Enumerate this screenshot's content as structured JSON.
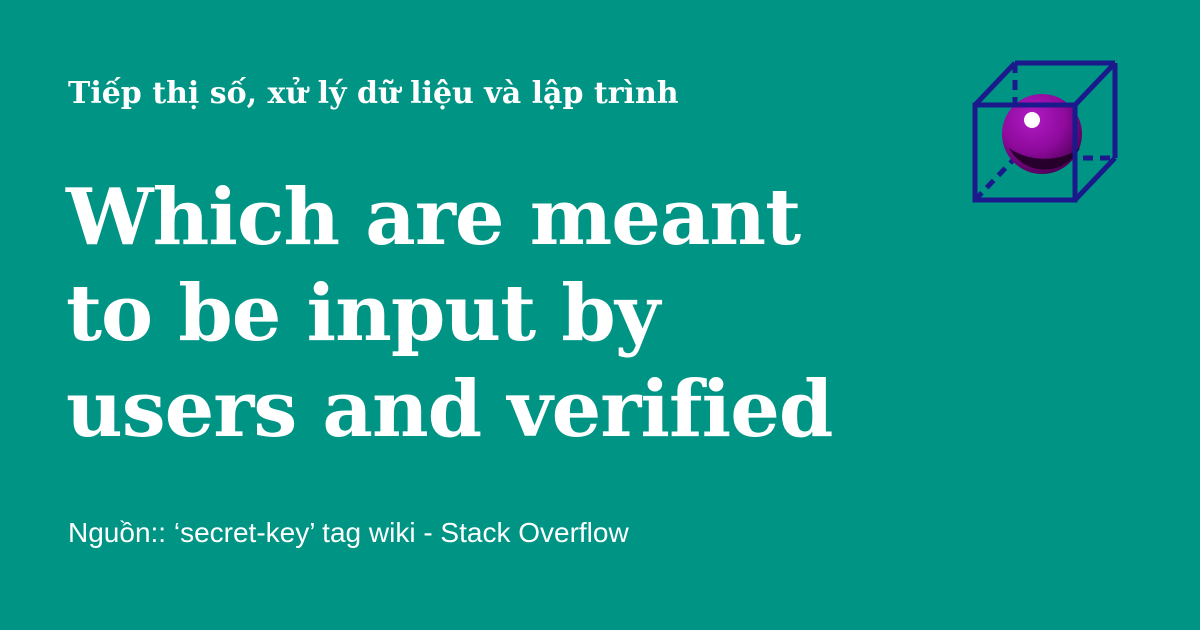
{
  "kicker": "Tiếp thị số, xử lý dữ liệu và lập trình",
  "headline": {
    "line1": "Which are meant",
    "line2": "to be input by",
    "line3": "users and verified"
  },
  "source": "Nguồn:: ‘secret-key’ tag wiki - Stack Overflow",
  "logo_icon": "cube-with-sphere-icon",
  "colors": {
    "background": "#009485",
    "text": "#ffffff",
    "cube_stroke": "#1a1a8c",
    "sphere": "#8e0a9c"
  }
}
